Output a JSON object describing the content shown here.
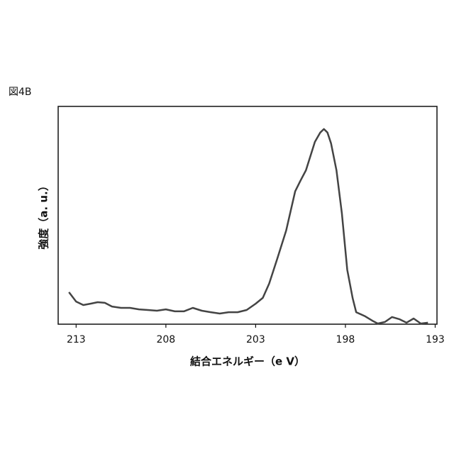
{
  "chart_data": {
    "type": "line",
    "title": "図4B",
    "xlabel": "結合エネルギー（e V）",
    "ylabel": "強度（a. u.）",
    "xlim": [
      214,
      192.9
    ],
    "ylim": [
      0,
      100
    ],
    "xticks": [
      213,
      208,
      203,
      198,
      193
    ],
    "series": [
      {
        "color": "#444444",
        "x": [
          213.4,
          213.0,
          212.6,
          212.2,
          211.8,
          211.4,
          211.0,
          210.5,
          210.0,
          209.5,
          209.0,
          208.5,
          208.0,
          207.5,
          207.0,
          206.5,
          206.0,
          205.5,
          205.0,
          204.5,
          204.0,
          203.5,
          203.0,
          202.6,
          202.25,
          201.8,
          201.3,
          200.8,
          200.5,
          200.2,
          199.7,
          199.4,
          199.2,
          199.0,
          198.8,
          198.5,
          198.2,
          197.9,
          197.6,
          197.4,
          196.9,
          196.5,
          196.2,
          195.8,
          195.4,
          195.0,
          194.6,
          194.2,
          193.8,
          193.4
        ],
        "values": [
          14.7,
          10.4,
          8.8,
          9.4,
          10.1,
          9.8,
          8.1,
          7.5,
          7.5,
          6.8,
          6.5,
          6.2,
          6.8,
          5.9,
          5.9,
          7.5,
          6.2,
          5.5,
          4.9,
          5.5,
          5.5,
          6.5,
          9.4,
          12.1,
          18.6,
          30,
          43,
          61,
          66,
          70.7,
          83.7,
          88,
          89.6,
          88,
          83,
          70.7,
          51,
          25,
          12,
          5.5,
          3.6,
          1.6,
          0.3,
          1,
          3.3,
          2.3,
          0.7,
          2.6,
          0.3,
          0.7
        ]
      }
    ]
  }
}
